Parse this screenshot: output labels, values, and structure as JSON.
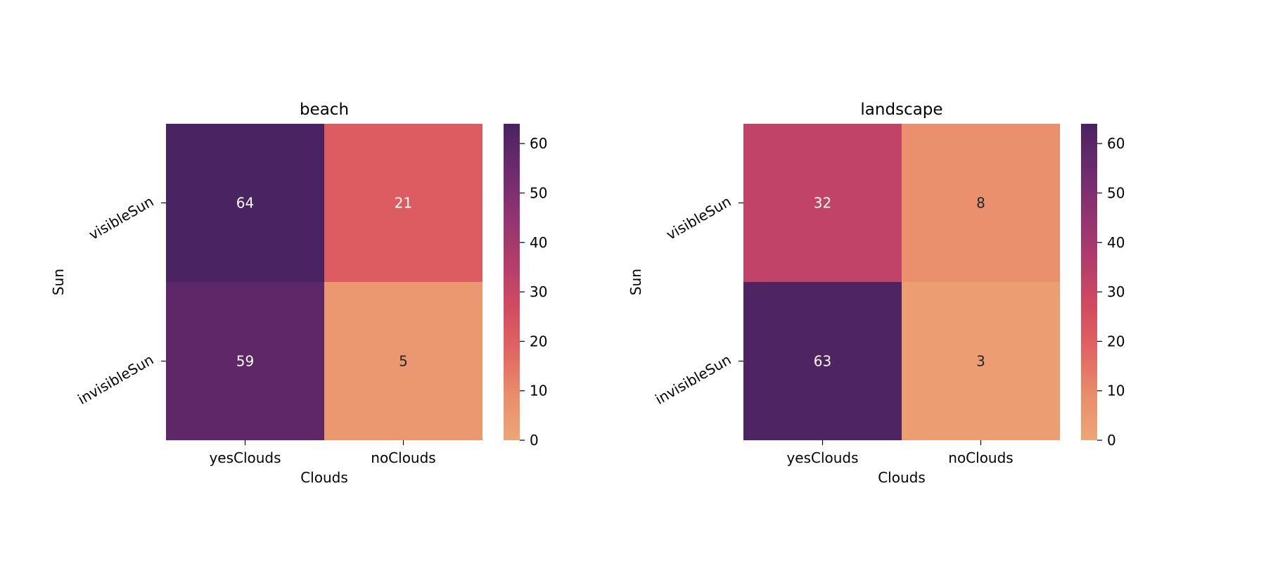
{
  "chart_data": [
    {
      "type": "heatmap",
      "title": "beach",
      "xlabel": "Clouds",
      "ylabel": "Sun",
      "x_categories": [
        "yesClouds",
        "noClouds"
      ],
      "y_categories": [
        "visibleSun",
        "invisibleSun"
      ],
      "values": [
        [
          64,
          21
        ],
        [
          59,
          5
        ]
      ],
      "colorbar": {
        "range": [
          0,
          64
        ],
        "ticks": [
          0,
          10,
          20,
          30,
          40,
          50,
          60
        ]
      },
      "colormap": "flare"
    },
    {
      "type": "heatmap",
      "title": "landscape",
      "xlabel": "Clouds",
      "ylabel": "Sun",
      "x_categories": [
        "yesClouds",
        "noClouds"
      ],
      "y_categories": [
        "visibleSun",
        "invisibleSun"
      ],
      "values": [
        [
          32,
          8
        ],
        [
          63,
          3
        ]
      ],
      "colorbar": {
        "range": [
          0,
          64
        ],
        "ticks": [
          0,
          10,
          20,
          30,
          40,
          50,
          60
        ]
      },
      "colormap": "flare"
    }
  ],
  "colors": {
    "colormap_stops": [
      "#eda676",
      "#e98d6b",
      "#e16462",
      "#d14a61",
      "#b13c6c",
      "#8f3371",
      "#6c2b6d",
      "#4a2362"
    ],
    "annotation_dark": "#262626",
    "annotation_light": "#ffffff"
  }
}
